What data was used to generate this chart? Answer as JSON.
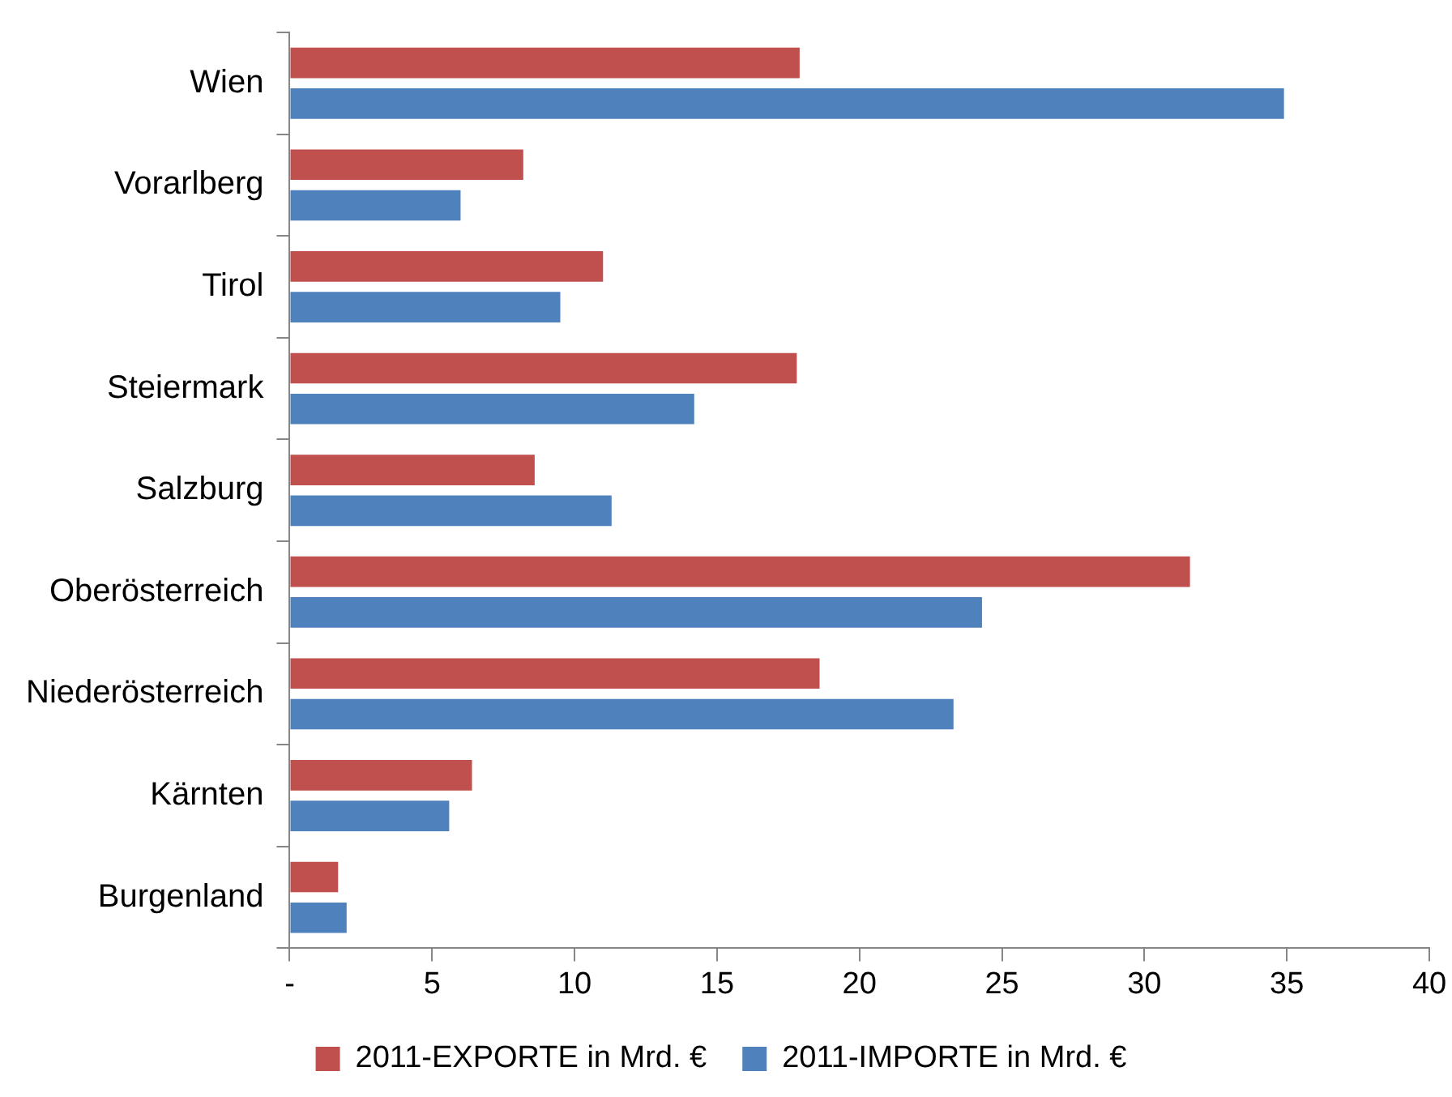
{
  "chart_data": {
    "type": "bar",
    "orientation": "horizontal",
    "categories": [
      "Wien",
      "Vorarlberg",
      "Tirol",
      "Steiermark",
      "Salzburg",
      "Oberösterreich",
      "Niederösterreich",
      "Kärnten",
      "Burgenland"
    ],
    "series": [
      {
        "name": "2011-EXPORTE in Mrd. €",
        "color": "#c0504d",
        "values": [
          17.9,
          8.2,
          11.0,
          17.8,
          8.6,
          31.6,
          18.6,
          6.4,
          1.7
        ]
      },
      {
        "name": "2011-IMPORTE in Mrd. €",
        "color": "#4f81bd",
        "values": [
          34.9,
          6.0,
          9.5,
          14.2,
          11.3,
          24.3,
          23.3,
          5.6,
          2.0
        ]
      }
    ],
    "xlim": [
      0,
      40
    ],
    "xticks": [
      {
        "value": 0,
        "label": "-"
      },
      5,
      10,
      15,
      20,
      25,
      30,
      35,
      40
    ],
    "grid": false,
    "legend": "bottom"
  }
}
